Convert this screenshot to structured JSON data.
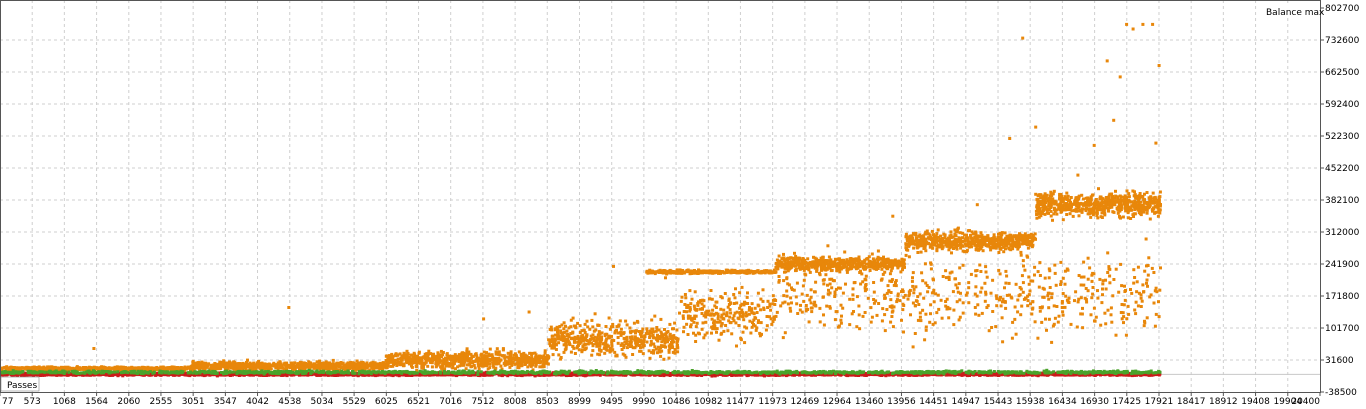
{
  "chart_data": {
    "type": "scatter",
    "title": "",
    "ylabel": "Balance max",
    "xlabel": "Passes",
    "x_ticks": [
      77,
      573,
      1068,
      1564,
      2060,
      2555,
      3051,
      3547,
      4042,
      4538,
      5034,
      5529,
      6025,
      6521,
      7016,
      7512,
      8008,
      8503,
      8999,
      9495,
      9990,
      10486,
      10982,
      11477,
      11973,
      12469,
      12964,
      13460,
      13956,
      14451,
      14947,
      15443,
      15938,
      16434,
      16930,
      17425,
      17921,
      18417,
      18912,
      19408,
      19904,
      20400
    ],
    "y_ticks": [
      802700,
      732600,
      662500,
      592400,
      522300,
      452200,
      382100,
      312000,
      241900,
      171800,
      101700,
      31600,
      -38500
    ],
    "xlim": [
      77,
      20400
    ],
    "ylim": [
      -38500,
      802700
    ],
    "grid": true,
    "series": [
      {
        "color": "#e8870a",
        "bands": [
          {
            "x": [
              77,
              3000
            ],
            "center": 16000,
            "spread": 6000,
            "density": 1.0
          },
          {
            "x": [
              3000,
              6000
            ],
            "center": 22000,
            "spread": 15000,
            "density": 1.2
          },
          {
            "x": [
              6000,
              8500
            ],
            "center": 35000,
            "spread": 30000,
            "density": 1.4
          },
          {
            "x": [
              8500,
              10500
            ],
            "center": 80000,
            "spread": 65000,
            "density": 1.2
          },
          {
            "x": [
              10500,
              12000
            ],
            "center": 135000,
            "spread": 90000,
            "density": 0.8
          },
          {
            "x": [
              10000,
              12000
            ],
            "center": 228000,
            "spread": 6000,
            "density": 0.9
          },
          {
            "x": [
              12000,
              14000
            ],
            "center": 245000,
            "spread": 25000,
            "density": 1.2
          },
          {
            "x": [
              14000,
              16000
            ],
            "center": 295000,
            "spread": 35000,
            "density": 1.5
          },
          {
            "x": [
              16000,
              17921
            ],
            "center": 375000,
            "spread": 45000,
            "density": 1.6
          },
          {
            "x": [
              12000,
              17921
            ],
            "center": 180000,
            "spread": 140000,
            "density": 0.5
          }
        ],
        "outliers": [
          [
            1500,
            60000
          ],
          [
            4500,
            150000
          ],
          [
            7500,
            125000
          ],
          [
            8200,
            140000
          ],
          [
            9500,
            240000
          ],
          [
            10300,
            215000
          ],
          [
            12800,
            285000
          ],
          [
            13800,
            350000
          ],
          [
            15100,
            375000
          ],
          [
            15600,
            520000
          ],
          [
            15800,
            740000
          ],
          [
            16000,
            545000
          ],
          [
            16900,
            505000
          ],
          [
            17100,
            690000
          ],
          [
            17300,
            655000
          ],
          [
            17400,
            770000
          ],
          [
            17500,
            760000
          ],
          [
            17650,
            770000
          ],
          [
            17800,
            770000
          ],
          [
            17900,
            680000
          ],
          [
            17850,
            510000
          ],
          [
            17900,
            130000
          ],
          [
            17700,
            300000
          ],
          [
            17200,
            560000
          ],
          [
            16650,
            440000
          ]
        ]
      },
      {
        "color": "#cc1a1a",
        "bands": [
          {
            "x": [
              77,
              17921
            ],
            "center": 4000,
            "spread": 5000,
            "density": 1.0
          }
        ],
        "outliers": []
      },
      {
        "color": "#4aa32a",
        "bands": [
          {
            "x": [
              77,
              17921
            ],
            "center": 8000,
            "spread": 5000,
            "density": 0.35
          }
        ],
        "outliers": []
      }
    ]
  }
}
